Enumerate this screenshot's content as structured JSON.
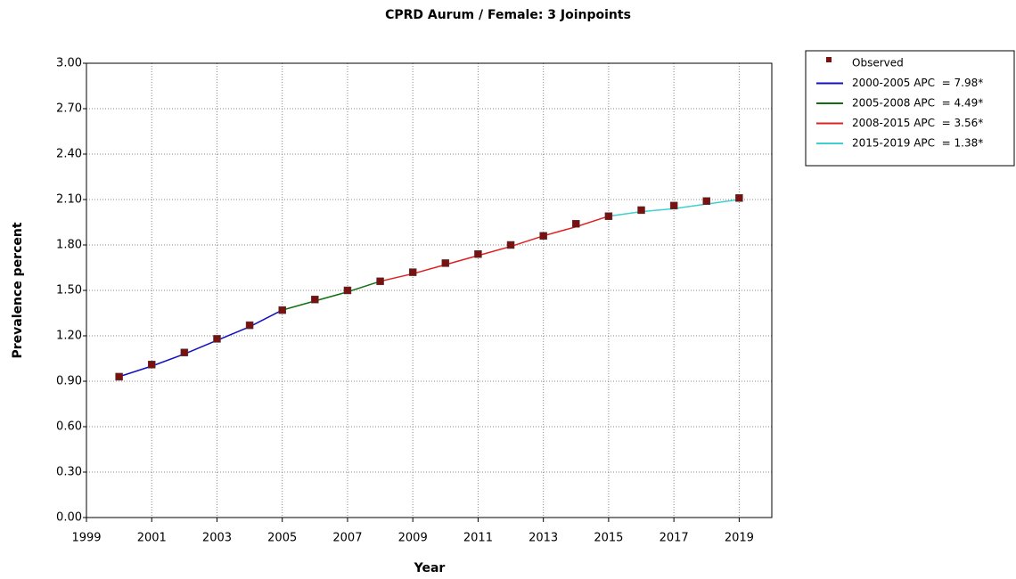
{
  "chart_data": {
    "type": "line",
    "title": "CPRD Aurum / Female: 3 Joinpoints",
    "x_label": "Year",
    "y_label": "Prevalence percent",
    "xlim": [
      1999,
      2020
    ],
    "xticks": [
      1999,
      2001,
      2003,
      2005,
      2007,
      2009,
      2011,
      2013,
      2015,
      2017,
      2019
    ],
    "ylim": [
      0,
      3
    ],
    "yticks": [
      {
        "value": 0,
        "label": "0.00"
      },
      {
        "value": 0.3,
        "label": "0.30"
      },
      {
        "value": 0.6,
        "label": "0.60"
      },
      {
        "value": 0.9,
        "label": "0.90"
      },
      {
        "value": 1.2,
        "label": "1.20"
      },
      {
        "value": 1.5,
        "label": "1.50"
      },
      {
        "value": 1.8,
        "label": "1.80"
      },
      {
        "value": 2.1,
        "label": "2.10"
      },
      {
        "value": 2.4,
        "label": "2.40"
      },
      {
        "value": 2.7,
        "label": "2.70"
      },
      {
        "value": 3,
        "label": "3.00"
      }
    ],
    "grid": true,
    "legend": "outside-top-right",
    "series": [
      {
        "name": "Observed",
        "color": "#7b1010",
        "style": "markers",
        "x": [
          2000,
          2001,
          2002,
          2003,
          2004,
          2005,
          2006,
          2007,
          2008,
          2009,
          2010,
          2011,
          2012,
          2013,
          2014,
          2015,
          2016,
          2017,
          2018,
          2019
        ],
        "values": [
          0.93,
          1.01,
          1.09,
          1.18,
          1.27,
          1.37,
          1.44,
          1.5,
          1.56,
          1.62,
          1.68,
          1.74,
          1.8,
          1.86,
          1.94,
          1.99,
          2.03,
          2.06,
          2.09,
          2.11
        ]
      },
      {
        "name": "2000-2005 APC  = 7.98*",
        "color": "#1010c0",
        "style": "line",
        "x": [
          2000,
          2001,
          2002,
          2003,
          2004,
          2005
        ],
        "values": [
          0.93,
          1.0,
          1.08,
          1.17,
          1.26,
          1.37
        ]
      },
      {
        "name": "2005-2008 APC  = 4.49*",
        "color": "#107010",
        "style": "line",
        "x": [
          2005,
          2006,
          2007,
          2008
        ],
        "values": [
          1.37,
          1.43,
          1.49,
          1.56
        ]
      },
      {
        "name": "2008-2015 APC  = 3.56*",
        "color": "#e02020",
        "style": "line",
        "x": [
          2008,
          2009,
          2010,
          2011,
          2012,
          2013,
          2014,
          2015
        ],
        "values": [
          1.56,
          1.61,
          1.67,
          1.73,
          1.79,
          1.86,
          1.92,
          1.99
        ]
      },
      {
        "name": "2015-2019 APC  = 1.38*",
        "color": "#40d0d0",
        "style": "line",
        "x": [
          2015,
          2016,
          2017,
          2018,
          2019
        ],
        "values": [
          1.99,
          2.02,
          2.04,
          2.07,
          2.1
        ]
      }
    ]
  }
}
